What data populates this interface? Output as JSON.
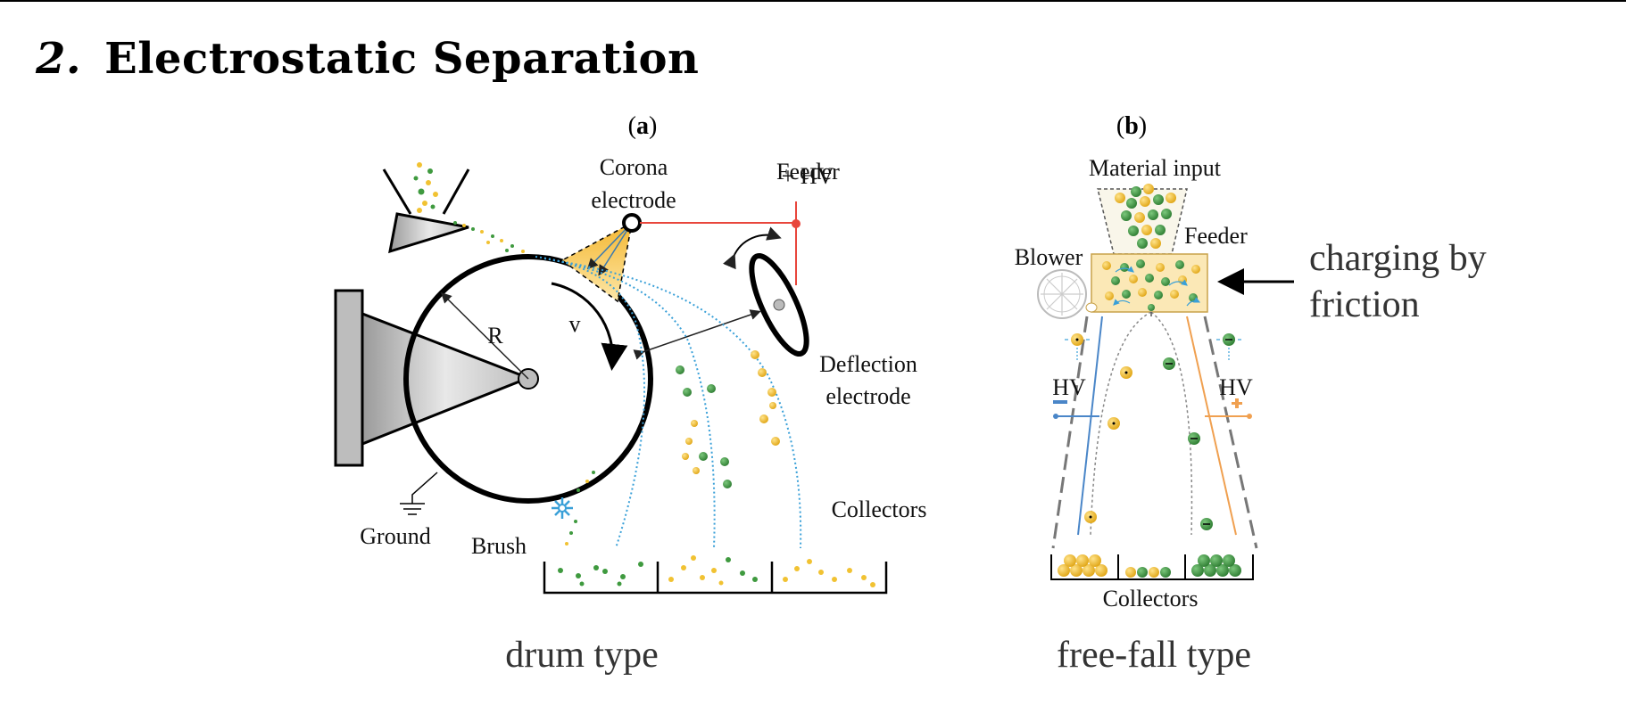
{
  "slide": {
    "number": "2.",
    "title": "Electrostatic Separation"
  },
  "panel_a": {
    "tag_open": "(",
    "tag_letter": "a",
    "tag_close": ")",
    "labels": {
      "feeder": "Feeder",
      "corona_line1": "Corona",
      "corona_line2": "electrode",
      "hv": "+ HV",
      "radius": "R",
      "velocity": "v",
      "deflection_line1": "Deflection",
      "deflection_line2": "electrode",
      "collectors": "Collectors",
      "ground": "Ground",
      "brush": "Brush"
    },
    "caption": "drum type"
  },
  "panel_b": {
    "tag_open": "(",
    "tag_letter": "b",
    "tag_close": ")",
    "labels": {
      "material_input": "Material input",
      "feeder": "Feeder",
      "blower": "Blower",
      "hv_left": "HV",
      "hv_right": "HV",
      "collectors": "Collectors"
    },
    "caption": "free-fall type"
  },
  "annotation": {
    "line1": "charging by",
    "line2": "friction"
  },
  "colors": {
    "green_particle": "#3f9a3f",
    "yellow_particle": "#f1c232",
    "hv_wire": "#e8463c",
    "trajectory": "#3aa0d8",
    "orange_line": "#f0a050",
    "blue_line": "#4a86c8"
  }
}
